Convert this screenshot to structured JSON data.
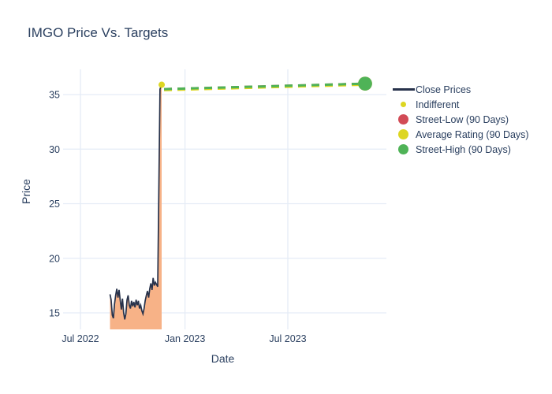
{
  "title": "IMGO Price Vs. Targets",
  "x_axis_label": "Date",
  "y_axis_label": "Price",
  "colors": {
    "text": "#2a3f5f",
    "grid": "#e5ecf6",
    "background": "#ffffff",
    "close_line": "#27324b",
    "close_fill": "#f7b287",
    "indifferent": "#ddd621",
    "street_low": "#d24b56",
    "average_rating": "#ddd621",
    "street_high": "#4fb357"
  },
  "legend": {
    "items": [
      {
        "label": "Close Prices",
        "marker": "line",
        "color": "#27324b"
      },
      {
        "label": "Indifferent",
        "marker": "small-dot",
        "color": "#ddd621"
      },
      {
        "label": "Street-Low (90 Days)",
        "marker": "circle",
        "color": "#d24b56"
      },
      {
        "label": "Average Rating (90 Days)",
        "marker": "circle",
        "color": "#ddd621"
      },
      {
        "label": "Street-High (90 Days)",
        "marker": "circle",
        "color": "#4fb357"
      }
    ]
  },
  "chart_data": {
    "type": "line",
    "title": "IMGO Price Vs. Targets",
    "xlabel": "Date",
    "ylabel": "Price",
    "x_ticks": [
      {
        "date": "2022-07-01",
        "label": "Jul 2022"
      },
      {
        "date": "2023-01-01",
        "label": "Jan 2023"
      },
      {
        "date": "2023-07-01",
        "label": "Jul 2023"
      }
    ],
    "y_ticks": [
      15,
      20,
      25,
      30,
      35
    ],
    "y_range": [
      13.5,
      37.3
    ],
    "x_range": [
      "2022-06-01",
      "2023-12-21"
    ],
    "grid": true,
    "legend_position": "right",
    "series": [
      {
        "name": "Close Prices",
        "type": "area-line",
        "color": "#27324b",
        "fill_color": "#f7b287",
        "dates": [
          "2022-08-22",
          "2022-08-24",
          "2022-08-26",
          "2022-08-28",
          "2022-08-30",
          "2022-09-01",
          "2022-09-03",
          "2022-09-05",
          "2022-09-07",
          "2022-09-09",
          "2022-09-11",
          "2022-09-13",
          "2022-09-15",
          "2022-09-17",
          "2022-09-19",
          "2022-09-21",
          "2022-09-23",
          "2022-09-25",
          "2022-09-27",
          "2022-09-29",
          "2022-10-01",
          "2022-10-03",
          "2022-10-05",
          "2022-10-07",
          "2022-10-09",
          "2022-10-11",
          "2022-10-13",
          "2022-10-15",
          "2022-10-17",
          "2022-10-19",
          "2022-10-21",
          "2022-10-23",
          "2022-10-25",
          "2022-10-27",
          "2022-10-29",
          "2022-10-31",
          "2022-11-02",
          "2022-11-04",
          "2022-11-06",
          "2022-11-08",
          "2022-11-10",
          "2022-11-14",
          "2022-11-18",
          "2022-11-21"
        ],
        "values": [
          16.7,
          16.2,
          14.8,
          14.5,
          15.8,
          16.6,
          17.2,
          16.4,
          17.1,
          16.2,
          15.3,
          16.3,
          15.0,
          14.4,
          14.9,
          16.2,
          16.6,
          15.7,
          15.4,
          16.1,
          15.6,
          16.0,
          15.5,
          16.2,
          15.7,
          16.1,
          15.4,
          15.7,
          15.2,
          14.9,
          15.4,
          16.1,
          16.6,
          17.0,
          16.4,
          17.2,
          17.7,
          17.1,
          18.2,
          17.5,
          17.8,
          17.4,
          35.5,
          35.9
        ]
      },
      {
        "name": "Indifferent",
        "type": "scatter",
        "color": "#ddd621",
        "points": [
          {
            "date": "2022-11-21",
            "value": 35.9
          }
        ]
      },
      {
        "name": "Street-Low (90 Days)",
        "type": "dashed-target",
        "color": "#d24b56",
        "from": {
          "date": "2022-11-21",
          "value": 35.5
        },
        "to": {
          "date": "2023-11-14",
          "value": 36.0
        }
      },
      {
        "name": "Average Rating (90 Days)",
        "type": "dashed-target",
        "color": "#ddd621",
        "from": {
          "date": "2022-11-21",
          "value": 35.5
        },
        "to": {
          "date": "2023-11-14",
          "value": 36.0
        }
      },
      {
        "name": "Street-High (90 Days)",
        "type": "dashed-target",
        "color": "#4fb357",
        "from": {
          "date": "2022-11-21",
          "value": 35.5
        },
        "to": {
          "date": "2023-11-14",
          "value": 36.0
        }
      }
    ]
  }
}
